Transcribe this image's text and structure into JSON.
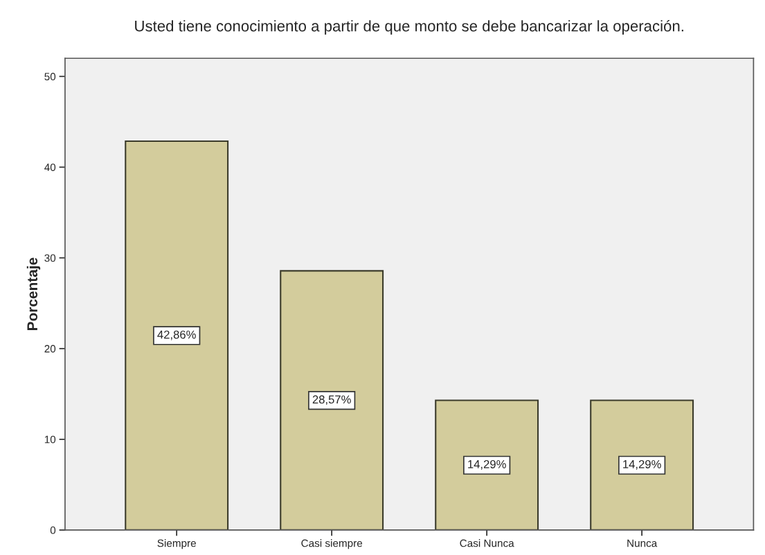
{
  "chart_data": {
    "type": "bar",
    "title": "Usted tiene conocimiento a partir de que monto se debe bancarizar la operación.",
    "ylabel": "Porcentaje",
    "categories": [
      "Siempre",
      "Casi siempre",
      "Casi Nunca",
      "Nunca"
    ],
    "values": [
      42.86,
      28.57,
      14.29,
      14.29
    ],
    "value_labels": [
      "42,86%",
      "28,57%",
      "14,29%",
      "14,29%"
    ],
    "color": "#d3cc9c",
    "ylim": [
      0,
      52
    ],
    "yticks": [
      0,
      10,
      20,
      30,
      40,
      50
    ],
    "grid": false
  }
}
